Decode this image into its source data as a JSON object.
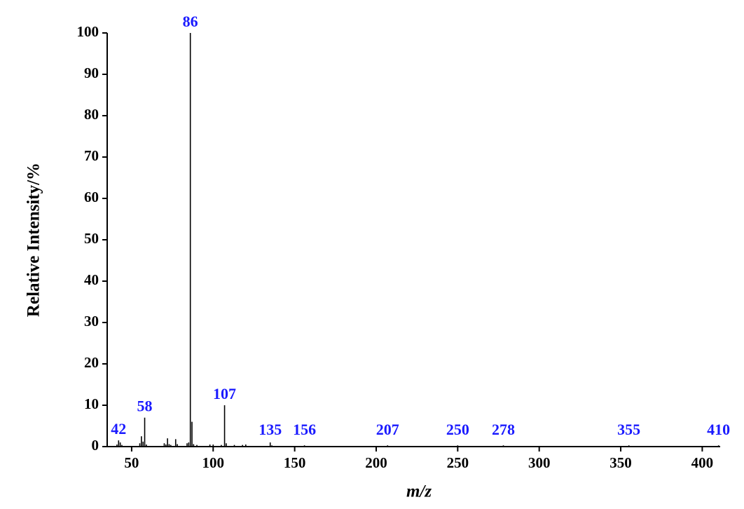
{
  "chart_data": {
    "type": "stem",
    "x_label": "m/z",
    "y_label": "Relative Intensity/%",
    "x": [
      41,
      42,
      43,
      44,
      55,
      56,
      57,
      58,
      59,
      70,
      71,
      72,
      73,
      74,
      77,
      78,
      84,
      85,
      86,
      87,
      88,
      90,
      98,
      100,
      105,
      107,
      108,
      113,
      118,
      120,
      135,
      136,
      156,
      207,
      250,
      278,
      355,
      410
    ],
    "values": [
      0.5,
      1.5,
      1.0,
      0.4,
      0.8,
      2.5,
      1.2,
      7.0,
      0.5,
      0.8,
      0.5,
      2.0,
      0.6,
      0.4,
      1.8,
      0.6,
      0.8,
      1.0,
      100,
      6.0,
      0.6,
      0.4,
      0.5,
      0.5,
      0.4,
      10.0,
      0.8,
      0.4,
      0.4,
      0.5,
      1.0,
      0.3,
      0.3,
      0.3,
      0.3,
      0.3,
      0.3,
      0.3
    ],
    "color": "#000000",
    "annotations": [
      42,
      58,
      86,
      107,
      135,
      156,
      207,
      250,
      278,
      355,
      410
    ],
    "annotation_color": "#1a1aff",
    "xlim": [
      35,
      411
    ],
    "ylim": [
      0,
      100
    ],
    "xticks": [
      50,
      100,
      150,
      200,
      250,
      300,
      350,
      400
    ],
    "yticks": [
      0,
      10,
      20,
      30,
      40,
      50,
      60,
      70,
      80,
      90,
      100
    ]
  }
}
